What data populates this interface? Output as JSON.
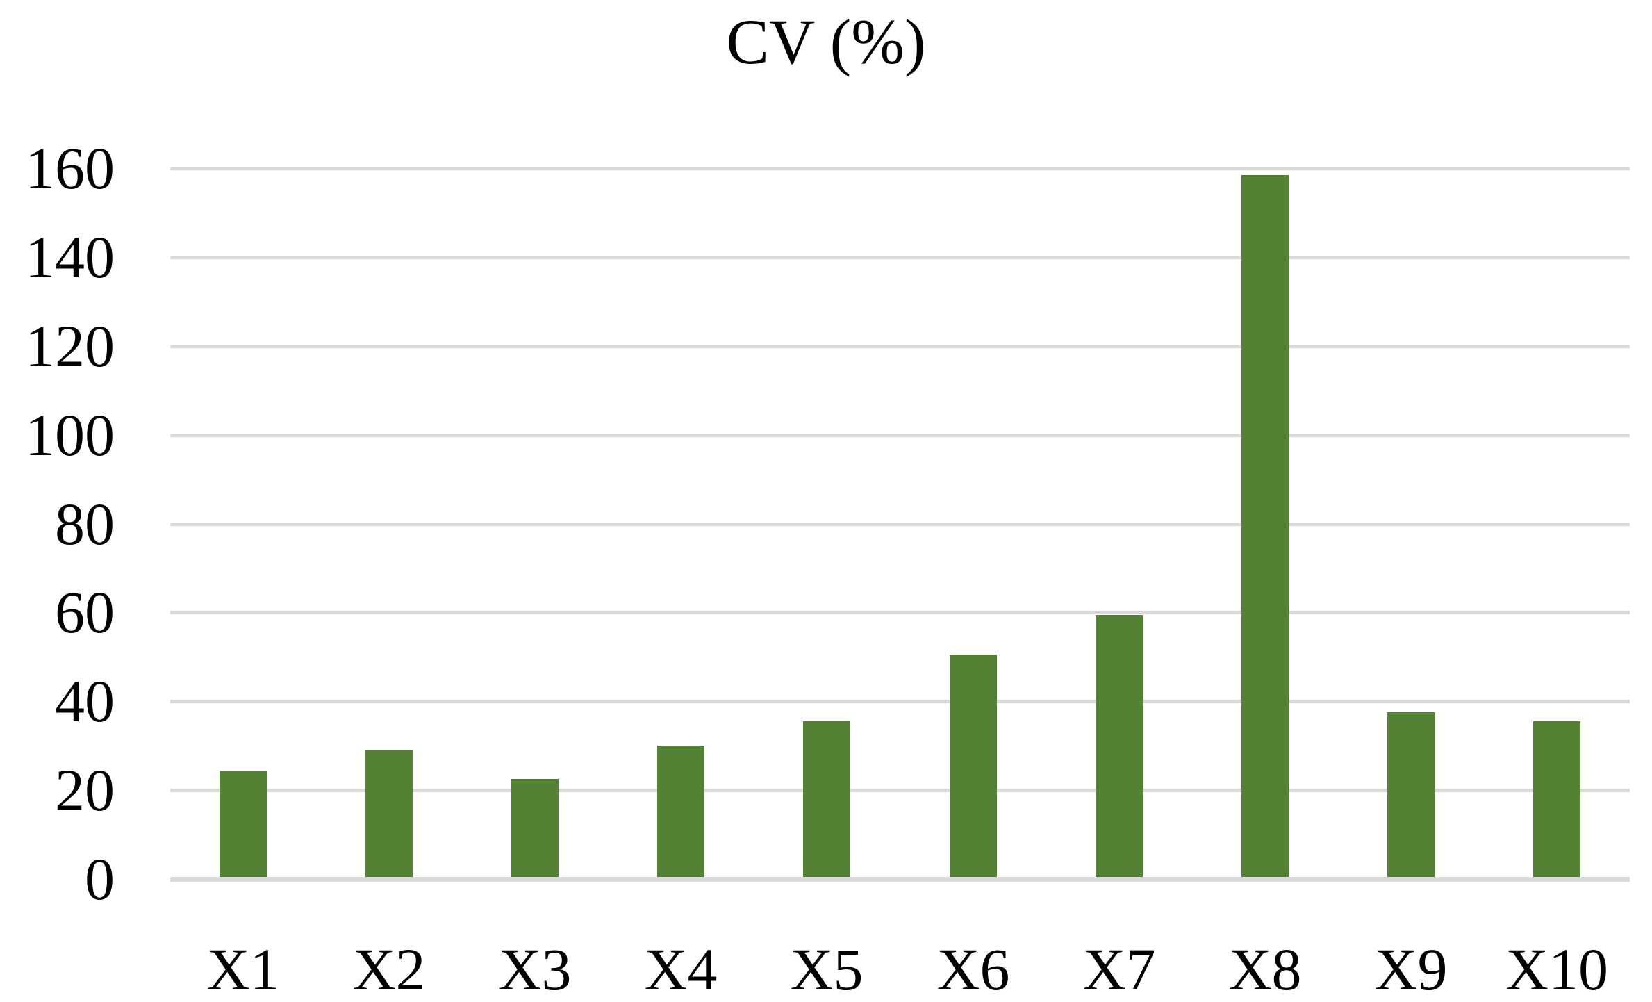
{
  "chart_data": {
    "type": "bar",
    "title": "CV (%)",
    "categories": [
      "X1",
      "X2",
      "X3",
      "X4",
      "X5",
      "X6",
      "X7",
      "X8",
      "X9",
      "X10"
    ],
    "values": [
      24,
      28.5,
      22,
      29.5,
      35,
      50,
      59,
      158,
      37,
      35
    ],
    "xlabel": "",
    "ylabel": "",
    "ylim": [
      0,
      160
    ],
    "y_tick_step": 20,
    "y_tick_labels": [
      "0",
      "20",
      "40",
      "60",
      "80",
      "100",
      "120",
      "140",
      "160"
    ],
    "grid": "horizontal",
    "legend": "none",
    "bar_color": "#548235",
    "gridline_color": "#D9D9D9",
    "axis_line_color": "#D9D9D9",
    "text_color": "#000000",
    "background_color": "#FFFFFF"
  }
}
